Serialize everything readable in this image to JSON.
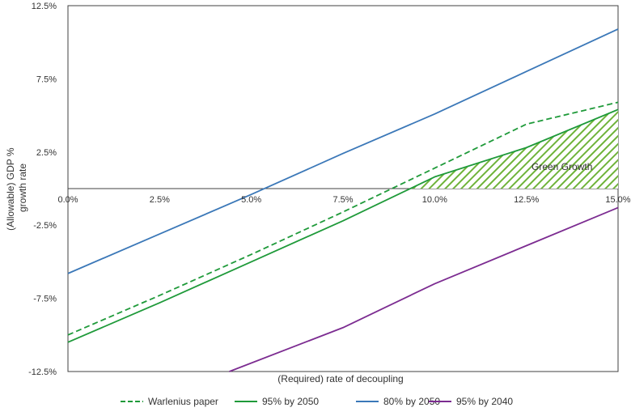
{
  "chart_data": {
    "type": "line",
    "title": "",
    "xlabel": "(Required) rate of decoupling",
    "ylabel_lines": [
      "(Allowable) GDP %",
      "growth rate"
    ],
    "xlim": [
      0,
      15
    ],
    "ylim": [
      -12.5,
      12.5
    ],
    "x_ticks": [
      0,
      2.5,
      5,
      7.5,
      10,
      12.5,
      15
    ],
    "x_tick_labels": [
      "0.0%",
      "2.5%",
      "5.0%",
      "7.5%",
      "10.0%",
      "12.5%",
      "15.0%"
    ],
    "y_ticks": [
      12.5,
      7.5,
      2.5,
      -2.5,
      -7.5,
      -12.5
    ],
    "y_tick_labels": [
      "12.5%",
      "7.5%",
      "2.5%",
      "-2.5%",
      "-7.5%",
      "-12.5%"
    ],
    "grid": false,
    "legend_position": "bottom",
    "series": [
      {
        "name": "Warlenius paper",
        "color": "#1f9a3a",
        "dash": true,
        "x": [
          0,
          2.5,
          5,
          7.5,
          10,
          12.5,
          15
        ],
        "y": [
          -10,
          -7.3,
          -4.5,
          -1.6,
          1.4,
          4.4,
          5.9
        ]
      },
      {
        "name": "95% by 2050",
        "color": "#1f9a3a",
        "dash": false,
        "x": [
          0,
          2.5,
          5,
          7.5,
          10,
          12.5,
          15
        ],
        "y": [
          -10.5,
          -7.8,
          -5,
          -2.2,
          0.8,
          2.8,
          5.4
        ]
      },
      {
        "name": "80% by 2050",
        "color": "#3b78b8",
        "dash": false,
        "x": [
          0,
          2.5,
          5,
          7.5,
          10,
          12.5,
          15
        ],
        "y": [
          -5.8,
          -3.1,
          -0.4,
          2.4,
          5.1,
          8,
          10.9
        ]
      },
      {
        "name": "95% by 2040",
        "color": "#7c2c91",
        "dash": false,
        "x": [
          4.4,
          7.5,
          10,
          12.5,
          15
        ],
        "y": [
          -12.5,
          -9.5,
          -6.5,
          -3.9,
          -1.3
        ]
      }
    ],
    "annotations": [
      {
        "text": "Green Growth",
        "region": "hatched area between 95% by 2050 curve and zero line, x from 10.5% to 15%"
      }
    ]
  }
}
